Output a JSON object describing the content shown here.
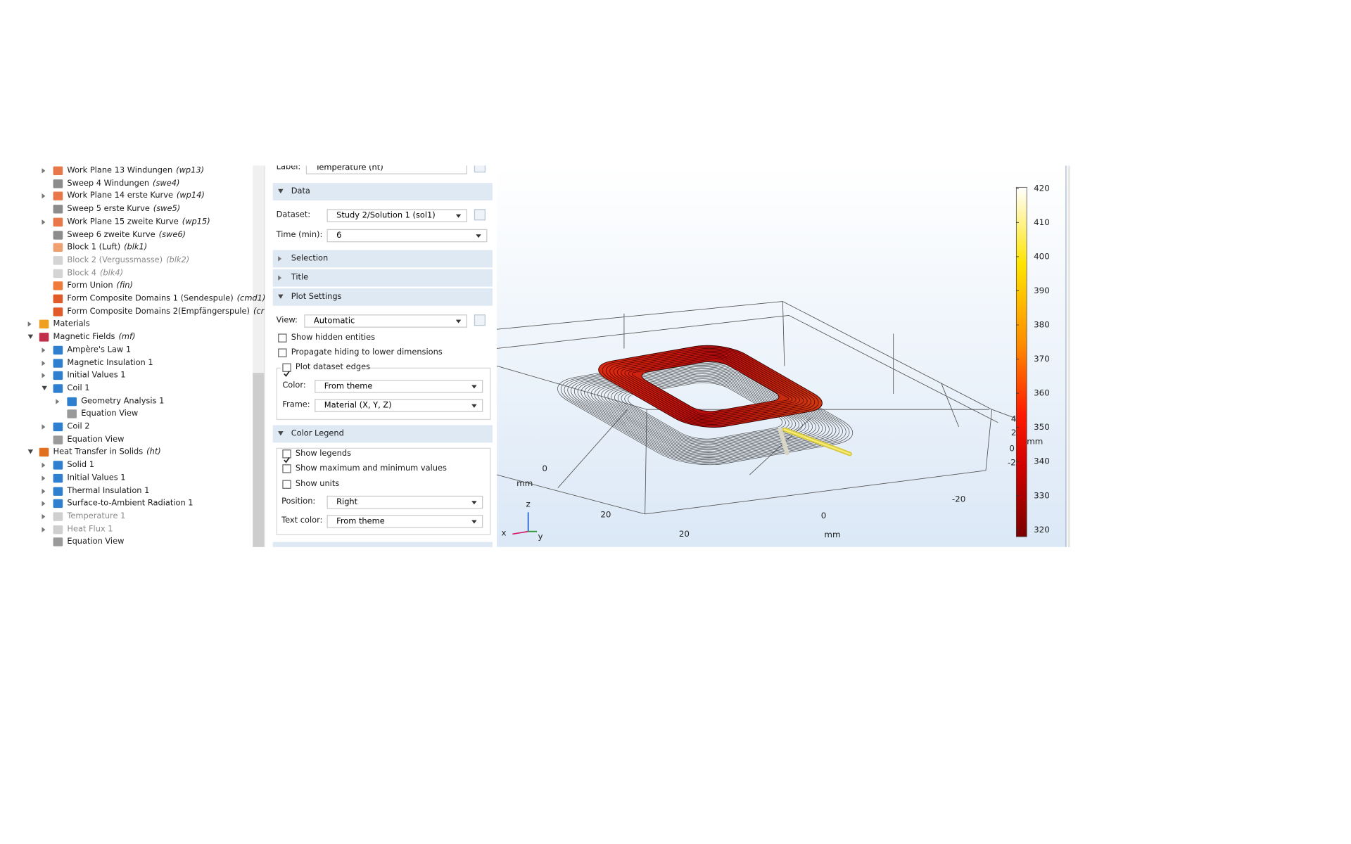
{
  "tree": {
    "items": [
      {
        "label": "Work Plane 13 Windungen",
        "tag": "(wp13)",
        "level": 2,
        "toggle": "collapsed",
        "icon_color": "#e8774a"
      },
      {
        "label": "Sweep 4 Windungen",
        "tag": "(swe4)",
        "level": 2,
        "icon_color": "#8c8c8c"
      },
      {
        "label": "Work Plane 14 erste Kurve",
        "tag": "(wp14)",
        "level": 2,
        "toggle": "collapsed",
        "icon_color": "#e8774a"
      },
      {
        "label": "Sweep 5 erste Kurve",
        "tag": "(swe5)",
        "level": 2,
        "icon_color": "#8c8c8c"
      },
      {
        "label": "Work Plane 15 zweite Kurve",
        "tag": "(wp15)",
        "level": 2,
        "toggle": "collapsed",
        "icon_color": "#e8774a"
      },
      {
        "label": "Sweep 6 zweite Kurve",
        "tag": "(swe6)",
        "level": 2,
        "icon_color": "#8c8c8c"
      },
      {
        "label": "Block 1 (Luft)",
        "tag": "(blk1)",
        "level": 2,
        "icon_color": "#f0a070"
      },
      {
        "label": "Block 2 (Vergussmasse)",
        "tag": "(blk2)",
        "level": 2,
        "disabled": true,
        "icon_color": "#d4d4d4"
      },
      {
        "label": "Block 4",
        "tag": "(blk4)",
        "level": 2,
        "disabled": true,
        "icon_color": "#d4d4d4"
      },
      {
        "label": "Form Union",
        "tag": "(fin)",
        "level": 2,
        "icon_color": "#f07a3a"
      },
      {
        "label": "Form Composite Domains 1 (Sendespule)",
        "tag": "(cmd1)",
        "level": 2,
        "icon_color": "#e05a2a"
      },
      {
        "label": "Form Composite Domains 2(Empfängerspule)",
        "tag": "(cr",
        "level": 2,
        "icon_color": "#e05a2a"
      },
      {
        "label": "Materials",
        "level": 1,
        "toggle": "collapsed",
        "icon_color": "#f0a020"
      },
      {
        "label": "Magnetic Fields",
        "tag": "(mf)",
        "level": 1,
        "toggle": "expanded",
        "icon_color": "#c0304a"
      },
      {
        "label": "Ampère's Law 1",
        "level": 2,
        "toggle": "collapsed",
        "icon_color": "#2f7fd0"
      },
      {
        "label": "Magnetic Insulation 1",
        "level": 2,
        "toggle": "collapsed",
        "icon_color": "#2f7fd0"
      },
      {
        "label": "Initial Values 1",
        "level": 2,
        "toggle": "collapsed",
        "icon_color": "#2f7fd0"
      },
      {
        "label": "Coil 1",
        "level": 2,
        "toggle": "expanded",
        "icon_color": "#2f7fd0"
      },
      {
        "label": "Geometry Analysis 1",
        "level": 3,
        "toggle": "collapsed",
        "icon_color": "#2f7fd0"
      },
      {
        "label": "Equation View",
        "level": 3,
        "icon_color": "#9a9a9a"
      },
      {
        "label": "Coil 2",
        "level": 2,
        "toggle": "collapsed",
        "icon_color": "#2f7fd0"
      },
      {
        "label": "Equation View",
        "level": 2,
        "icon_color": "#9a9a9a"
      },
      {
        "label": "Heat Transfer in Solids",
        "tag": "(ht)",
        "level": 1,
        "toggle": "expanded",
        "icon_color": "#e07020"
      },
      {
        "label": "Solid 1",
        "level": 2,
        "toggle": "collapsed",
        "icon_color": "#2f7fd0"
      },
      {
        "label": "Initial Values 1",
        "level": 2,
        "toggle": "collapsed",
        "icon_color": "#2f7fd0"
      },
      {
        "label": "Thermal Insulation 1",
        "level": 2,
        "toggle": "collapsed",
        "icon_color": "#2f7fd0"
      },
      {
        "label": "Surface-to-Ambient Radiation 1",
        "level": 2,
        "toggle": "collapsed",
        "icon_color": "#2f7fd0"
      },
      {
        "label": "Temperature 1",
        "level": 2,
        "toggle": "collapsed",
        "disabled": true,
        "icon_color": "#cfcfcf"
      },
      {
        "label": "Heat Flux 1",
        "level": 2,
        "toggle": "collapsed",
        "disabled": true,
        "icon_color": "#cfcfcf"
      },
      {
        "label": "Equation View",
        "level": 2,
        "icon_color": "#9a9a9a"
      }
    ]
  },
  "settings": {
    "label": {
      "caption": "Label:",
      "value": "Temperature (ht)"
    },
    "data_section": {
      "title": "Data",
      "dataset": {
        "caption": "Dataset:",
        "value": "Study 2/Solution 1 (sol1)"
      },
      "time": {
        "caption": "Time (min):",
        "value": "6"
      }
    },
    "selection_section": {
      "title": "Selection"
    },
    "title_section": {
      "title": "Title"
    },
    "plot_settings": {
      "title": "Plot Settings",
      "view": {
        "caption": "View:",
        "value": "Automatic"
      },
      "show_hidden": {
        "text": "Show hidden entities",
        "checked": false
      },
      "propagate": {
        "text": "Propagate hiding to lower dimensions",
        "checked": false
      },
      "plot_edges": {
        "text": "Plot dataset edges",
        "checked": true
      },
      "color": {
        "caption": "Color:",
        "value": "From theme"
      },
      "frame": {
        "caption": "Frame:",
        "value": "Material  (X, Y, Z)"
      }
    },
    "color_legend": {
      "title": "Color Legend",
      "show_legends": {
        "text": "Show legends",
        "checked": true
      },
      "show_minmax": {
        "text": "Show maximum and minimum values",
        "checked": false
      },
      "show_units": {
        "text": "Show units",
        "checked": false
      },
      "position": {
        "caption": "Position:",
        "value": "Right"
      },
      "text_color": {
        "caption": "Text color:",
        "value": "From theme"
      }
    }
  },
  "graphics": {
    "colorbar": {
      "limits": [
        318,
        420.3
      ],
      "ticks": [
        420,
        410,
        400,
        390,
        380,
        370,
        360,
        350,
        340,
        330,
        320
      ]
    },
    "axis_labels": [
      "0",
      "mm",
      "20",
      "20",
      "0",
      "mm",
      "-20",
      "4",
      "2",
      "0",
      "-2",
      "mm"
    ],
    "triad": {
      "x": "x",
      "y": "y",
      "z": "z"
    }
  }
}
